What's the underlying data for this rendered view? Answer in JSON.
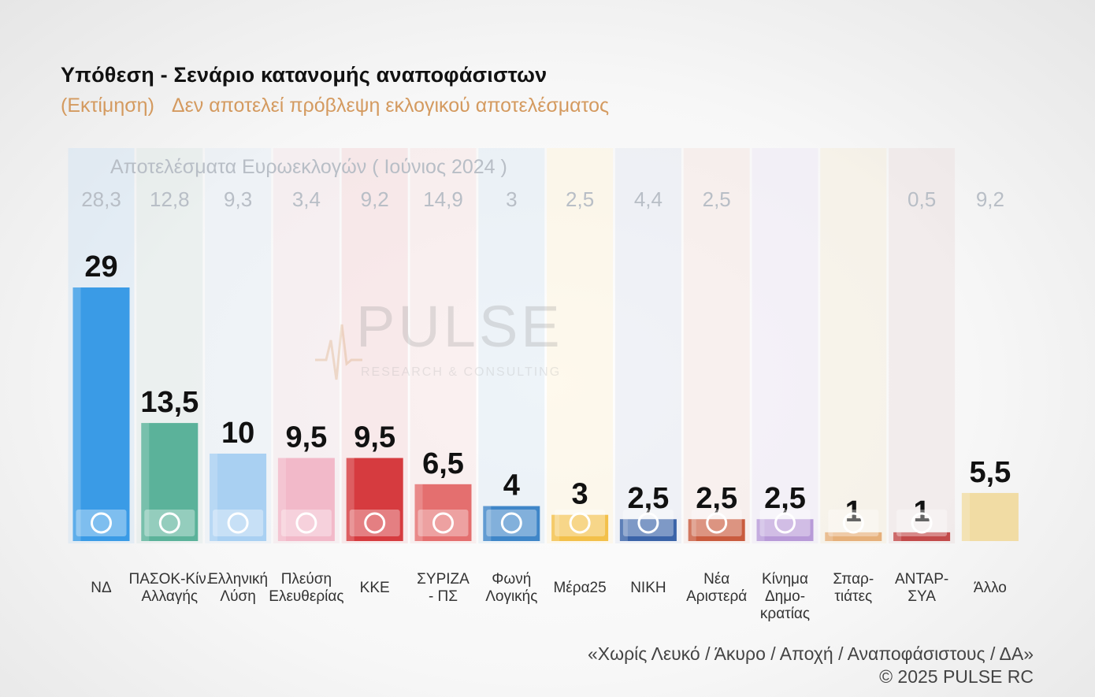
{
  "title": "Υπόθεση - Σενάριο κατανομής αναποφάσιστων",
  "subtitle_left": "(Εκτίμηση)",
  "subtitle_right": "Δεν αποτελεί πρόβλεψη εκλογικού αποτελέσματος",
  "euro_heading": "Αποτελέσματα Ευρωεκλογών  ( Ιούνιος 2024 )",
  "watermark": {
    "word": "PULSE",
    "sub": "RESEARCH & CONSULTING"
  },
  "footer": {
    "note": "«Χωρίς Λευκό / Άκυρο / Αποχή / Αναποφάσιστους / ΔΑ»",
    "copyright": "©  2025  PULSE RC"
  },
  "chart_data": {
    "type": "bar",
    "title": "Υπόθεση - Σενάριο κατανομής αναποφάσιστων",
    "categories": [
      [
        "ΝΔ"
      ],
      [
        "ΠΑΣΟΚ-Κίν.",
        "Αλλαγής"
      ],
      [
        "Ελληνική",
        "Λύση"
      ],
      [
        "Πλεύση",
        "Ελευθερίας"
      ],
      [
        "ΚΚΕ"
      ],
      [
        "ΣΥΡΙΖΑ",
        "- ΠΣ"
      ],
      [
        "Φωνή",
        "Λογικής"
      ],
      [
        "Μέρα25"
      ],
      [
        "ΝΙΚΗ"
      ],
      [
        "Νέα",
        "Αριστερά"
      ],
      [
        "Κίνημα",
        "Δημο-",
        "κρατίας"
      ],
      [
        "Σπαρ-",
        "τιάτες"
      ],
      [
        "ΑΝΤΑΡ-",
        "ΣΥΑ"
      ],
      [
        "Άλλο"
      ]
    ],
    "series": [
      {
        "values": [
          29,
          13.5,
          10,
          9.5,
          9.5,
          6.5,
          4,
          3,
          2.5,
          2.5,
          2.5,
          1,
          1,
          5.5
        ]
      }
    ],
    "value_labels": [
      "29",
      "13,5",
      "10",
      "9,5",
      "9,5",
      "6,5",
      "4",
      "3",
      "2,5",
      "2,5",
      "2,5",
      "1",
      "1",
      "5,5"
    ],
    "euro_2024": [
      "28,3",
      "12,8",
      "9,3",
      "3,4",
      "9,2",
      "14,9",
      "3",
      "2,5",
      "4,4",
      "2,5",
      "",
      "",
      "0,5",
      "9,2"
    ],
    "colors": [
      "#3a9be6",
      "#5bb29a",
      "#a9d0f2",
      "#f2b9c9",
      "#d63b3f",
      "#e46f6f",
      "#3f86c8",
      "#f3c04a",
      "#3a63a8",
      "#c95b3e",
      "#b89ad8",
      "#e6b07a",
      "#c24a4a",
      "#f1dca4"
    ],
    "column_tints": [
      "#cfe3f5",
      "#dce7e4",
      "#e2ecf5",
      "#f2e2e7",
      "#f3d3d4",
      "#f6e0e0",
      "#dae6f2",
      "#fcf2d8",
      "#dfe5ef",
      "#f3e3dd",
      "#ebe4f3",
      "#f5ecd7",
      "#ecdede",
      "#f3ecd7"
    ],
    "icons": [
      "nd-logo-icon",
      "pasok-sun-icon",
      "elliniki-lysi-compass-icon",
      "plefsi-ship-icon",
      "kke-logo-icon",
      "syriza-logo-icon",
      "foni-logikis-icon",
      "mera25-logo-icon",
      "niki-logo-icon",
      "nea-aristera-icon",
      "kinima-dimokratias-icon",
      "spartiates-helmet-icon",
      "antarsya-logo-icon",
      ""
    ],
    "ylim": [
      0,
      29
    ],
    "grid": false,
    "legend": "none"
  }
}
